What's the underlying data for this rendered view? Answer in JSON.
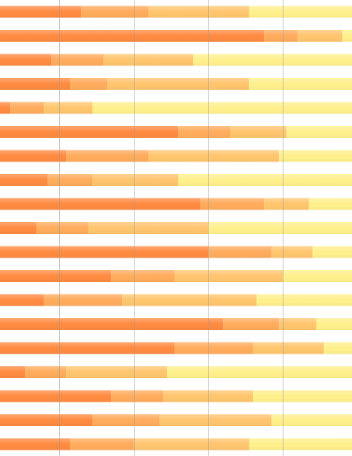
{
  "chart_data": {
    "type": "stacked-bar-horizontal",
    "categories": [
      null,
      null,
      null,
      null,
      null,
      null,
      null,
      null,
      null,
      null,
      null,
      null,
      null,
      null,
      null,
      null,
      null,
      null,
      null
    ],
    "series": [
      {
        "color": "#ff8a40",
        "values": [
          26,
          75,
          18,
          23,
          7,
          52,
          22,
          17,
          58,
          14,
          60,
          34,
          16,
          64,
          51,
          11,
          34,
          29,
          23
        ]
      },
      {
        "color": "#ffab5c",
        "values": [
          18,
          9,
          14,
          10,
          9,
          14,
          22,
          12,
          17,
          14,
          17,
          17,
          21,
          15,
          21,
          11,
          14,
          18,
          17
        ]
      },
      {
        "color": "#ffc56e",
        "values": [
          27,
          12,
          24,
          38,
          13,
          15,
          35,
          23,
          12,
          32,
          11,
          29,
          36,
          10,
          19,
          27,
          24,
          30,
          31
        ]
      },
      {
        "color": "#fff08c",
        "values": [
          29,
          4,
          44,
          29,
          71,
          19,
          21,
          48,
          13,
          40,
          12,
          20,
          27,
          11,
          9,
          51,
          28,
          23,
          29
        ]
      }
    ],
    "xlim": [
      4.2,
      98.6
    ],
    "xticks": [
      20,
      40,
      60,
      80
    ],
    "grid": true
  }
}
